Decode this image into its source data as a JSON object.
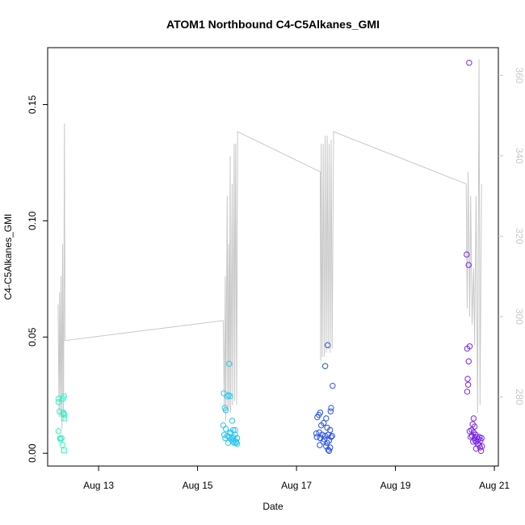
{
  "chart_data": {
    "type": "scatter",
    "title": "ATOM1 Northbound C4-C5Alkanes_GMI",
    "xlabel": "Date",
    "ylabel": "C4-C5Alkanes_GMI",
    "x_range_days": [
      11.97,
      21.08
    ],
    "ylim": [
      -0.0055,
      0.1745
    ],
    "y2lim": [
      262.8,
      366.9
    ],
    "x_ticks": [
      {
        "value": 13,
        "label": "Aug 13"
      },
      {
        "value": 15,
        "label": "Aug 15"
      },
      {
        "value": 17,
        "label": "Aug 17"
      },
      {
        "value": 19,
        "label": "Aug 19"
      },
      {
        "value": 21,
        "label": "Aug 21"
      }
    ],
    "y_ticks": [
      {
        "value": 0.0,
        "label": "0.00"
      },
      {
        "value": 0.05,
        "label": "0.05"
      },
      {
        "value": 0.1,
        "label": "0.10"
      },
      {
        "value": 0.15,
        "label": "0.15"
      }
    ],
    "y2_ticks": [
      {
        "value": 280,
        "label": "280"
      },
      {
        "value": 300,
        "label": "300"
      },
      {
        "value": 320,
        "label": "320"
      },
      {
        "value": 340,
        "label": "340"
      },
      {
        "value": 360,
        "label": "360"
      }
    ],
    "grid": false,
    "colors": {
      "line": "#c8c8c8",
      "group1": "#33f0c4",
      "group2": "#29c8f2",
      "group3": "#2a52e6",
      "group4": "#7a26e6",
      "axis": "#000000",
      "axis2": "#c8c8c8"
    },
    "series": [
      {
        "marker": "circle/square",
        "color_key": "group1",
        "points": [
          [
            12.19,
            0.022
          ],
          [
            12.19,
            0.0235
          ],
          [
            12.21,
            0.018
          ],
          [
            12.22,
            0.0065
          ],
          [
            12.23,
            0.006
          ],
          [
            12.25,
            0.0065
          ],
          [
            12.27,
            0.0036
          ],
          [
            12.19,
            0.0095
          ],
          [
            12.28,
            0.0235
          ],
          [
            12.3,
            0.0245
          ],
          [
            12.29,
            0.0175
          ],
          [
            12.31,
            0.0165
          ],
          [
            12.3,
            0.015
          ],
          [
            12.29,
            0.017
          ],
          [
            12.3,
            0.0012
          ]
        ]
      },
      {
        "marker": "circle",
        "color_key": "group2",
        "points": [
          [
            15.53,
            0.0258
          ],
          [
            15.55,
            0.0195
          ],
          [
            15.57,
            0.0185
          ],
          [
            15.63,
            0.025
          ],
          [
            15.66,
            0.0245
          ],
          [
            15.6,
            0.0245
          ],
          [
            15.64,
            0.0385
          ],
          [
            15.52,
            0.012
          ],
          [
            15.57,
            0.0105
          ],
          [
            15.7,
            0.014
          ],
          [
            15.54,
            0.008
          ],
          [
            15.6,
            0.0075
          ],
          [
            15.64,
            0.007
          ],
          [
            15.66,
            0.009
          ],
          [
            15.72,
            0.01
          ],
          [
            15.76,
            0.01
          ],
          [
            15.7,
            0.0065
          ],
          [
            15.74,
            0.0055
          ],
          [
            15.78,
            0.005
          ],
          [
            15.62,
            0.0045
          ],
          [
            15.74,
            0.0045
          ],
          [
            15.68,
            0.006
          ],
          [
            15.8,
            0.0065
          ],
          [
            15.72,
            0.007
          ],
          [
            15.76,
            0.008
          ],
          [
            15.56,
            0.0065
          ],
          [
            15.66,
            0.0085
          ],
          [
            15.71,
            0.005
          ],
          [
            15.78,
            0.0045
          ],
          [
            15.8,
            0.004
          ]
        ]
      },
      {
        "marker": "circle",
        "color_key": "group3",
        "points": [
          [
            17.63,
            0.0465
          ],
          [
            17.58,
            0.0375
          ],
          [
            17.73,
            0.029
          ],
          [
            17.7,
            0.0195
          ],
          [
            17.69,
            0.018
          ],
          [
            17.48,
            0.0175
          ],
          [
            17.45,
            0.0165
          ],
          [
            17.42,
            0.0155
          ],
          [
            17.6,
            0.015
          ],
          [
            17.55,
            0.013
          ],
          [
            17.5,
            0.012
          ],
          [
            17.62,
            0.011
          ],
          [
            17.68,
            0.01
          ],
          [
            17.4,
            0.0085
          ],
          [
            17.46,
            0.009
          ],
          [
            17.52,
            0.008
          ],
          [
            17.58,
            0.0075
          ],
          [
            17.64,
            0.008
          ],
          [
            17.7,
            0.007
          ],
          [
            17.72,
            0.0075
          ],
          [
            17.41,
            0.007
          ],
          [
            17.48,
            0.0065
          ],
          [
            17.56,
            0.006
          ],
          [
            17.66,
            0.0055
          ],
          [
            17.54,
            0.005
          ],
          [
            17.62,
            0.0045
          ],
          [
            17.47,
            0.0035
          ],
          [
            17.6,
            0.003
          ],
          [
            17.68,
            0.0025
          ],
          [
            17.64,
            0.0015
          ],
          [
            17.66,
            0.001
          ]
        ]
      },
      {
        "marker": "circle",
        "color_key": "group4",
        "points": [
          [
            20.49,
            0.168
          ],
          [
            20.44,
            0.0855
          ],
          [
            20.48,
            0.081
          ],
          [
            20.5,
            0.046
          ],
          [
            20.45,
            0.045
          ],
          [
            20.48,
            0.0395
          ],
          [
            20.46,
            0.032
          ],
          [
            20.47,
            0.0295
          ],
          [
            20.45,
            0.0265
          ],
          [
            20.58,
            0.015
          ],
          [
            20.56,
            0.0125
          ],
          [
            20.6,
            0.0115
          ],
          [
            20.54,
            0.01
          ],
          [
            20.5,
            0.0095
          ],
          [
            20.58,
            0.009
          ],
          [
            20.62,
            0.008
          ],
          [
            20.55,
            0.0075
          ],
          [
            20.65,
            0.007
          ],
          [
            20.7,
            0.007
          ],
          [
            20.74,
            0.0065
          ],
          [
            20.6,
            0.0065
          ],
          [
            20.52,
            0.007
          ],
          [
            20.68,
            0.006
          ],
          [
            20.72,
            0.0055
          ],
          [
            20.64,
            0.005
          ],
          [
            20.57,
            0.005
          ],
          [
            20.66,
            0.004
          ],
          [
            20.75,
            0.003
          ],
          [
            20.71,
            0.0025
          ],
          [
            20.63,
            0.002
          ],
          [
            20.73,
            0.001
          ],
          [
            20.61,
            0.0055
          ],
          [
            20.69,
            0.0035
          ]
        ]
      }
    ],
    "secondary_line": {
      "axis": "right",
      "color_key": "line",
      "points": [
        [
          12.18,
          303
        ],
        [
          12.2,
          275
        ],
        [
          12.21,
          306
        ],
        [
          12.23,
          275
        ],
        [
          12.24,
          310
        ],
        [
          12.26,
          272
        ],
        [
          12.27,
          318
        ],
        [
          12.29,
          274
        ],
        [
          12.31,
          348
        ],
        [
          12.32,
          294
        ],
        [
          15.52,
          299
        ],
        [
          15.54,
          276
        ],
        [
          15.56,
          310
        ],
        [
          15.57,
          274
        ],
        [
          15.6,
          330
        ],
        [
          15.61,
          276
        ],
        [
          15.63,
          318
        ],
        [
          15.64,
          277
        ],
        [
          15.66,
          340
        ],
        [
          15.67,
          276
        ],
        [
          15.7,
          333
        ],
        [
          15.71,
          278
        ],
        [
          15.74,
          343
        ],
        [
          15.75,
          279
        ],
        [
          15.77,
          343
        ],
        [
          15.79,
          278
        ],
        [
          15.81,
          346
        ],
        [
          17.48,
          336
        ],
        [
          17.49,
          289
        ],
        [
          17.5,
          343
        ],
        [
          17.52,
          290
        ],
        [
          17.54,
          343
        ],
        [
          17.56,
          290
        ],
        [
          17.58,
          345
        ],
        [
          17.6,
          291
        ],
        [
          17.62,
          345
        ],
        [
          17.64,
          292
        ],
        [
          17.66,
          343
        ],
        [
          17.68,
          291
        ],
        [
          17.7,
          344
        ],
        [
          17.72,
          292
        ],
        [
          17.75,
          346
        ],
        [
          20.43,
          333
        ],
        [
          20.45,
          302
        ],
        [
          20.47,
          336
        ],
        [
          20.5,
          300
        ],
        [
          20.52,
          330
        ],
        [
          20.55,
          298
        ],
        [
          20.58,
          312
        ],
        [
          20.6,
          293
        ],
        [
          20.63,
          330
        ],
        [
          20.66,
          276
        ],
        [
          20.69,
          364
        ],
        [
          20.71,
          278
        ],
        [
          20.74,
          333
        ]
      ]
    }
  }
}
